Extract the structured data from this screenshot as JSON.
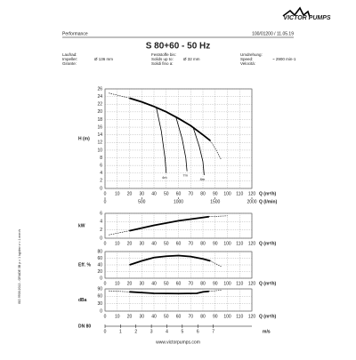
{
  "brand": "VICTOR PUMPS",
  "section": "Performance",
  "doc_ref": "100/01200 / 11.05.19",
  "title": "S 80+60 - 50 Hz",
  "specs": [
    {
      "labels": [
        "Laufrad:",
        "Impeller:",
        "Girante:"
      ],
      "value": "Ø 136 mm"
    },
    {
      "labels": [
        "Feststoffe bis:",
        "Solids up to:",
        "Solidi fino a:"
      ],
      "value": "Ø 32 mm"
    },
    {
      "labels": [
        "Umdrehung:",
        "Speed:",
        "Velocità:"
      ],
      "value": "~ 2900 min-1"
    }
  ],
  "side_note": "ISO 9906:2012 - GRADE 3B  ρ = 1 kg/dm³  ν = 1 mm²/s",
  "footer": "www.victorpumps.com",
  "chart_data": [
    {
      "type": "line",
      "ylabel": "H (m)",
      "xlabel": "Q (m³/h)",
      "x2label": "Q (l/min)",
      "xlim": [
        0,
        120
      ],
      "xticks": [
        0,
        10,
        20,
        30,
        40,
        50,
        60,
        70,
        80,
        90,
        100,
        110,
        120
      ],
      "ylim": [
        0,
        26
      ],
      "yticks": [
        0,
        2,
        4,
        6,
        8,
        10,
        12,
        14,
        16,
        18,
        20,
        22,
        24,
        26
      ],
      "x2lim": [
        0,
        2000
      ],
      "x2ticks": [
        0,
        500,
        1000,
        1500,
        2000
      ],
      "grid": true,
      "series": [
        {
          "color": "#000",
          "dashed": true,
          "x": [
            3,
            20
          ],
          "values": [
            24.9,
            23.6
          ]
        },
        {
          "color": "#000",
          "dashed": false,
          "x": [
            20,
            30,
            40,
            50,
            60,
            70,
            80,
            86
          ],
          "values": [
            23.6,
            22.6,
            21.4,
            20,
            18.3,
            16.4,
            14,
            12.5
          ]
        },
        {
          "color": "#000",
          "dashed": true,
          "x": [
            86,
            90,
            95
          ],
          "values": [
            12.5,
            10.5,
            7.5
          ]
        },
        {
          "color": "#000",
          "dashed": false,
          "thin": true,
          "label": "4m",
          "x": [
            42,
            46,
            49,
            50
          ],
          "values": [
            21,
            15,
            8,
            4
          ]
        },
        {
          "color": "#000",
          "dashed": false,
          "thin": true,
          "label": "7m",
          "x": [
            58,
            63,
            66,
            67
          ],
          "values": [
            18.6,
            13,
            8,
            4.5
          ]
        },
        {
          "color": "#000",
          "dashed": false,
          "thin": true,
          "label": "8m",
          "x": [
            72,
            77,
            80,
            81
          ],
          "values": [
            16,
            11,
            7,
            3.5
          ]
        }
      ]
    },
    {
      "type": "line",
      "ylabel": "kW",
      "xlabel": "Q (m³/h)",
      "xlim": [
        0,
        120
      ],
      "xticks": [
        0,
        10,
        20,
        30,
        40,
        50,
        60,
        70,
        80,
        90,
        100,
        110,
        120
      ],
      "ylim": [
        0,
        6
      ],
      "yticks": [
        0,
        2,
        4,
        6
      ],
      "grid": true,
      "series": [
        {
          "color": "#000",
          "dashed": true,
          "x": [
            3,
            20
          ],
          "values": [
            0.8,
            1.8
          ]
        },
        {
          "color": "#000",
          "dashed": false,
          "x": [
            20,
            40,
            60,
            85
          ],
          "values": [
            1.8,
            3.1,
            4.2,
            5.2
          ]
        },
        {
          "color": "#000",
          "dashed": true,
          "x": [
            85,
            100
          ],
          "values": [
            5.2,
            5.4
          ]
        }
      ]
    },
    {
      "type": "line",
      "ylabel": "Eff. %",
      "xlabel": "Q (m³/h)",
      "xlim": [
        0,
        120
      ],
      "xticks": [
        0,
        10,
        20,
        30,
        40,
        50,
        60,
        70,
        80,
        90,
        100,
        110,
        120
      ],
      "ylim": [
        0,
        80
      ],
      "yticks": [
        0,
        20,
        40,
        60,
        80
      ],
      "grid": true,
      "series": [
        {
          "color": "#000",
          "dashed": false,
          "x": [
            20,
            30,
            40,
            50,
            60,
            70,
            80,
            86
          ],
          "values": [
            40,
            52,
            62,
            66,
            68,
            65,
            58,
            52
          ]
        },
        {
          "color": "#000",
          "dashed": true,
          "x": [
            86,
            95
          ],
          "values": [
            52,
            35
          ]
        }
      ]
    },
    {
      "type": "line",
      "ylabel": "dBa",
      "xlabel": "Q (m³/h)",
      "xlim": [
        0,
        120
      ],
      "xticks": [
        0,
        10,
        20,
        30,
        40,
        50,
        60,
        70,
        80,
        90,
        100,
        110,
        120
      ],
      "ylim": [
        0,
        90
      ],
      "yticks": [
        0,
        30,
        60,
        90
      ],
      "grid": true,
      "series": [
        {
          "color": "#000",
          "dashed": true,
          "x": [
            3,
            20
          ],
          "values": [
            82,
            78
          ]
        },
        {
          "color": "#000",
          "dashed": false,
          "x": [
            20,
            40,
            60,
            75,
            80,
            85
          ],
          "values": [
            78,
            72,
            71,
            72,
            78,
            80
          ]
        },
        {
          "color": "#000",
          "dashed": true,
          "x": [
            85,
            95
          ],
          "values": [
            80,
            85
          ]
        }
      ]
    },
    {
      "type": "axis",
      "ylabel": "DN 80",
      "xlabel": "m/s",
      "xlim": [
        0,
        9.5
      ],
      "xticks": [
        0,
        1,
        2,
        3,
        4,
        5,
        6,
        7
      ]
    }
  ]
}
